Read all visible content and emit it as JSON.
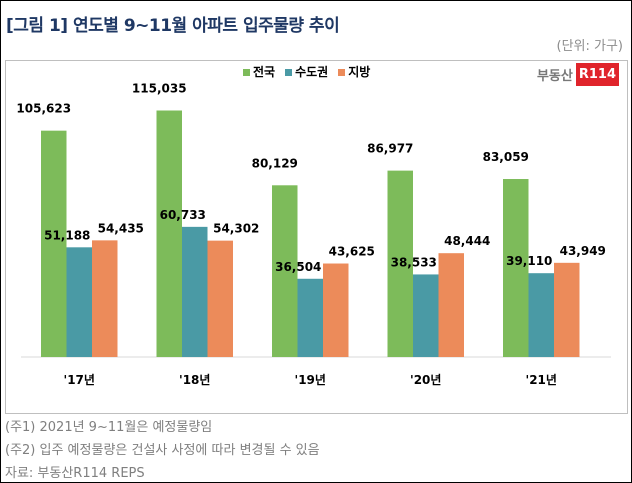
{
  "title": "[그림 1] 연도별 9~11월 아파트 입주물량 추이",
  "unit": "(단위: 가구)",
  "logo": "부동산R114",
  "notes": [
    "(주1) 2021년 9~11월은 예정물량임",
    "(주2) 입주 예정물량은 건설사 사정에 따라 변경될 수 있음",
    "자료: 부동산R114 REPS"
  ],
  "chart_data": {
    "type": "bar",
    "categories": [
      "'17년",
      "'18년",
      "'19년",
      "'20년",
      "'21년"
    ],
    "series": [
      {
        "name": "전국",
        "color": "#7dbb5a",
        "values": [
          105623,
          115035,
          80129,
          86977,
          83059
        ]
      },
      {
        "name": "수도권",
        "color": "#4a9aa5",
        "values": [
          51188,
          60733,
          36504,
          38533,
          39110
        ]
      },
      {
        "name": "지방",
        "color": "#ec8b5a",
        "values": [
          54435,
          54302,
          43625,
          48444,
          43949
        ]
      }
    ],
    "ylim": [
      0,
      140000
    ],
    "legend": "top-center",
    "grid": false
  }
}
